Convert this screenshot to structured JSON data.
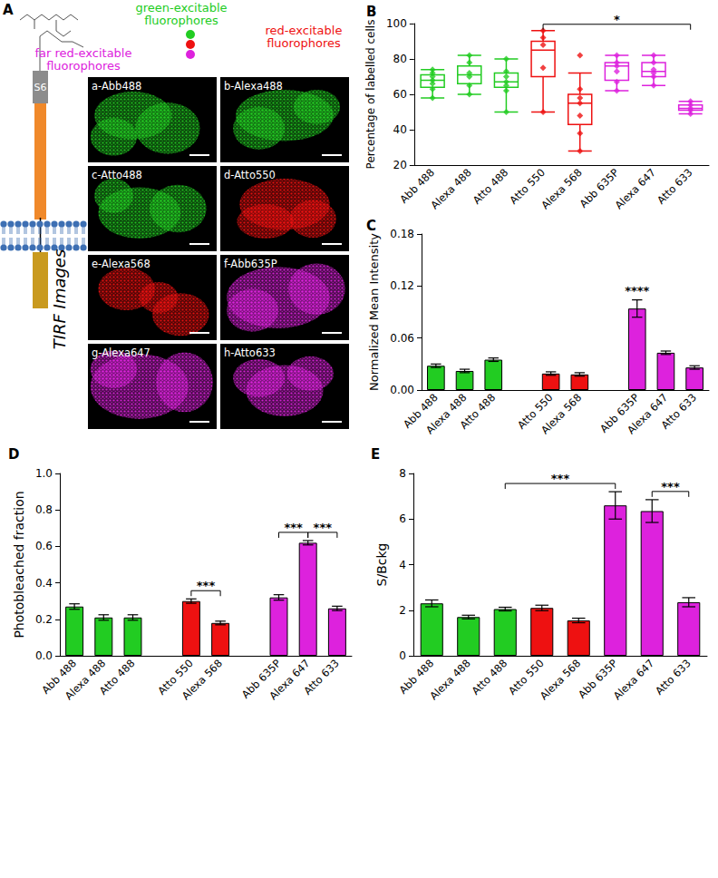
{
  "panel_a": {
    "panel_label": "A",
    "cap_label": "S6",
    "groups": [
      {
        "label": "green-excitable fluorophores",
        "color": "#22cc22"
      },
      {
        "label": "red-excitable fluorophores",
        "color": "#ee1111"
      },
      {
        "label": "far red-excitable fluorophores",
        "color": "#dd22dd"
      }
    ],
    "side_label": "TIRF Images",
    "images": [
      {
        "label": "a-Abb488",
        "color": "#22cc22"
      },
      {
        "label": "b-Alexa488",
        "color": "#22cc22"
      },
      {
        "label": "c-Atto488",
        "color": "#22cc22"
      },
      {
        "label": "d-Atto550",
        "color": "#ee1111"
      },
      {
        "label": "e-Alexa568",
        "color": "#ee1111"
      },
      {
        "label": "f-Abb635P",
        "color": "#dd22dd"
      },
      {
        "label": "g-Alexa647",
        "color": "#dd22dd"
      },
      {
        "label": "h-Atto633",
        "color": "#dd22dd"
      }
    ]
  },
  "chart_data": [
    {
      "panel_label": "B",
      "type": "boxplot",
      "ylabel": "Percentage of labelled cells",
      "categories": [
        "Abb 488",
        "Alexa 488",
        "Atto 488",
        "Atto 550",
        "Alexa 568",
        "Abb 635P",
        "Alexa 647",
        "Atto 633"
      ],
      "colors": [
        "#22cc22",
        "#22cc22",
        "#22cc22",
        "#ee1111",
        "#ee1111",
        "#dd22dd",
        "#dd22dd",
        "#dd22dd"
      ],
      "boxes": [
        [
          58,
          64,
          68,
          71,
          74
        ],
        [
          60,
          66,
          71,
          76,
          82
        ],
        [
          50,
          64,
          67,
          72,
          80
        ],
        [
          50,
          70,
          85,
          90,
          96
        ],
        [
          28,
          43,
          55,
          60,
          72
        ],
        [
          62,
          68,
          76,
          78,
          82
        ],
        [
          65,
          70,
          73,
          78,
          82
        ],
        [
          49,
          51,
          52,
          54,
          56
        ]
      ],
      "points": [
        [
          58,
          63,
          66,
          68,
          70,
          72,
          74
        ],
        [
          60,
          65,
          70,
          72,
          78,
          82
        ],
        [
          50,
          62,
          65,
          67,
          70,
          73,
          80
        ],
        [
          50,
          75,
          88,
          92,
          96
        ],
        [
          28,
          38,
          48,
          55,
          58,
          63,
          82
        ],
        [
          62,
          67,
          73,
          76,
          78,
          82
        ],
        [
          65,
          70,
          72,
          74,
          78,
          82
        ],
        [
          49,
          51,
          52,
          54,
          56
        ]
      ],
      "ylim": [
        20,
        100
      ],
      "yticks": [
        20,
        40,
        60,
        80,
        100
      ],
      "grid": false,
      "annotations": [
        {
          "from": "Atto 550",
          "to": "Atto 633",
          "label": "*"
        }
      ]
    },
    {
      "panel_label": "C",
      "type": "bar",
      "ylabel": "Normalized Mean Intensity",
      "categories": [
        "Abb 488",
        "Alexa 488",
        "Atto 488",
        null,
        "Atto 550",
        "Alexa 568",
        null,
        "Abb 635P",
        "Alexa 647",
        "Atto 633"
      ],
      "colors": [
        "#22cc22",
        "#22cc22",
        "#22cc22",
        null,
        "#ee1111",
        "#ee1111",
        null,
        "#dd22dd",
        "#dd22dd",
        "#dd22dd"
      ],
      "values": [
        0.028,
        0.022,
        0.035,
        null,
        0.019,
        0.018,
        null,
        0.094,
        0.043,
        0.026
      ],
      "error": [
        0.002,
        0.002,
        0.002,
        null,
        0.002,
        0.002,
        null,
        0.01,
        0.002,
        0.002
      ],
      "ylim": [
        0,
        0.18
      ],
      "yticks": [
        {
          "value": 0,
          "label": "0.00"
        },
        0.06,
        0.12,
        0.18
      ],
      "grid": false,
      "annotations": [
        {
          "from": "Abb 635P",
          "to": "Abb 635P",
          "label": "****"
        }
      ]
    },
    {
      "panel_label": "D",
      "type": "bar",
      "ylabel": "Photobleached fraction",
      "categories": [
        "Abb 488",
        "Alexa 488",
        "Atto 488",
        null,
        "Atto 550",
        "Alexa 568",
        null,
        "Abb 635P",
        "Alexa 647",
        "Atto 633"
      ],
      "colors": [
        "#22cc22",
        "#22cc22",
        "#22cc22",
        null,
        "#ee1111",
        "#ee1111",
        null,
        "#dd22dd",
        "#dd22dd",
        "#dd22dd"
      ],
      "values": [
        0.27,
        0.21,
        0.21,
        null,
        0.3,
        0.18,
        null,
        0.32,
        0.62,
        0.26
      ],
      "error": [
        0.015,
        0.015,
        0.015,
        null,
        0.012,
        0.01,
        null,
        0.015,
        0.012,
        0.012
      ],
      "ylim": [
        0,
        1
      ],
      "yticks": [
        {
          "value": 0,
          "label": "0.0"
        },
        0.2,
        0.4,
        0.6,
        0.8,
        {
          "value": 1,
          "label": "1.0"
        }
      ],
      "grid": false,
      "annotations": [
        {
          "from": "Atto 550",
          "to": "Alexa 568",
          "label": "***"
        },
        {
          "from": "Abb 635P",
          "to": "Alexa 647",
          "label": "***"
        },
        {
          "from": "Alexa 647",
          "to": "Atto 633",
          "label": "***"
        }
      ]
    },
    {
      "panel_label": "E",
      "type": "bar",
      "ylabel": "S/Bckg",
      "categories": [
        "Abb 488",
        "Alexa 488",
        "Atto 488",
        "Atto 550",
        "Alexa 568",
        "Abb 635P",
        "Alexa 647",
        "Atto 633"
      ],
      "colors": [
        "#22cc22",
        "#22cc22",
        "#22cc22",
        "#ee1111",
        "#ee1111",
        "#dd22dd",
        "#dd22dd",
        "#dd22dd"
      ],
      "values": [
        2.3,
        1.7,
        2.05,
        2.1,
        1.55,
        6.6,
        6.35,
        2.35
      ],
      "error": [
        0.15,
        0.08,
        0.08,
        0.12,
        0.1,
        0.6,
        0.5,
        0.2
      ],
      "ylim": [
        0,
        8
      ],
      "yticks": [
        0,
        2,
        4,
        6,
        8
      ],
      "grid": false,
      "annotations": [
        {
          "from": "Atto 488",
          "to": "Abb 635P",
          "label": "***"
        },
        {
          "from": "Alexa 647",
          "to": "Atto 633",
          "label": "***"
        }
      ]
    }
  ]
}
